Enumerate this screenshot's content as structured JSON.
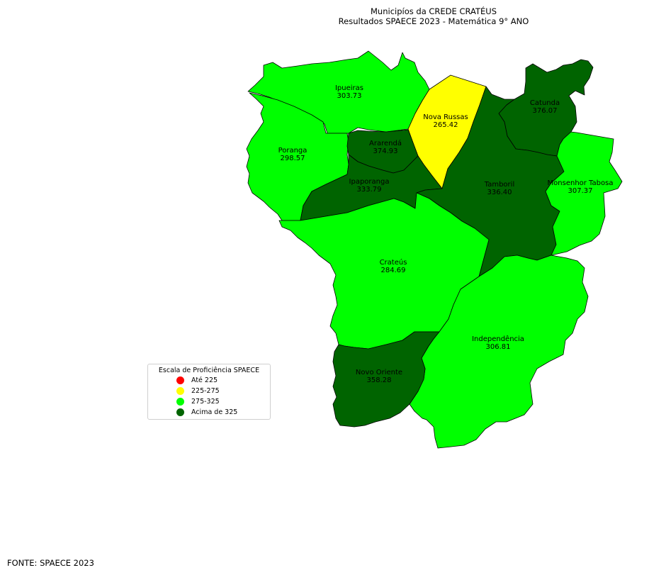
{
  "title": {
    "line1": "Municipíos da CREDE CRATÉUS",
    "line2": "Resultados SPAECE 2023 - Matemática 9° ANO"
  },
  "municipalities": [
    {
      "id": "ipueiras",
      "name": "Ipueiras",
      "value": "303.73",
      "category": "275-325"
    },
    {
      "id": "nova-russas",
      "name": "Nova Russas",
      "value": "265.42",
      "category": "225-275"
    },
    {
      "id": "catunda",
      "name": "Catunda",
      "value": "376.07",
      "category": "Acima de 325"
    },
    {
      "id": "poranga",
      "name": "Poranga",
      "value": "298.57",
      "category": "275-325"
    },
    {
      "id": "ararenda",
      "name": "Ararendá",
      "value": "374.93",
      "category": "Acima de 325"
    },
    {
      "id": "ipaporanga",
      "name": "Ipaporanga",
      "value": "333.79",
      "category": "Acima de 325"
    },
    {
      "id": "tamboril",
      "name": "Tamboril",
      "value": "336.40",
      "category": "Acima de 325"
    },
    {
      "id": "monsenhor-tabosa",
      "name": "Monsenhor Tabosa",
      "value": "307.37",
      "category": "275-325"
    },
    {
      "id": "crateus",
      "name": "Crateús",
      "value": "284.69",
      "category": "275-325"
    },
    {
      "id": "independencia",
      "name": "Independência",
      "value": "306.81",
      "category": "275-325"
    },
    {
      "id": "novo-oriente",
      "name": "Novo Oriente",
      "value": "358.28",
      "category": "Acima de 325"
    }
  ],
  "legend": {
    "title": "Escala de Proficiência SPAECE",
    "items": [
      {
        "label": "Até 225",
        "color": "#ff0000"
      },
      {
        "label": "225-275",
        "color": "#ffff00"
      },
      {
        "label": "275-325",
        "color": "#00ff00"
      },
      {
        "label": "Acima de 325",
        "color": "#006400"
      }
    ]
  },
  "source": "FONTE: SPAECE 2023"
}
